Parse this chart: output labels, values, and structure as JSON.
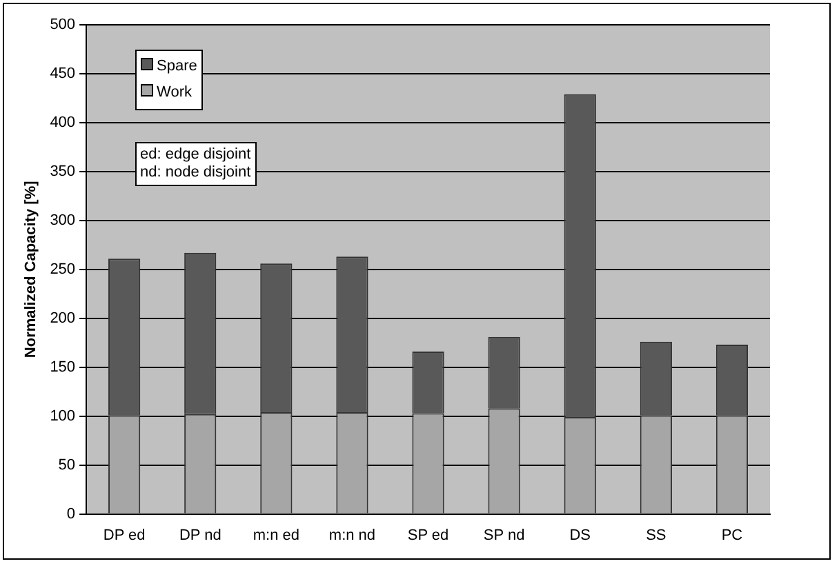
{
  "chart_data": {
    "type": "bar",
    "stacked": true,
    "ylabel": "Normalized Capacity [%]",
    "categories": [
      "DP ed",
      "DP nd",
      "m:n ed",
      "m:n nd",
      "SP ed",
      "SP nd",
      "DS",
      "SS",
      "PC"
    ],
    "series": [
      {
        "name": "Work",
        "color": "#a6a6a6",
        "values": [
          101,
          102,
          104,
          104,
          103,
          108,
          99,
          101,
          101
        ]
      },
      {
        "name": "Spare",
        "color": "#595959",
        "values": [
          160,
          165,
          152,
          159,
          63,
          73,
          330,
          75,
          72
        ]
      }
    ],
    "ylim": [
      0,
      500
    ],
    "yticks": [
      0,
      50,
      100,
      150,
      200,
      250,
      300,
      350,
      400,
      450,
      500
    ],
    "grid": "y",
    "legend": "top left",
    "annotations": [
      "ed: edge disjoint\nnd: node disjoint"
    ]
  }
}
